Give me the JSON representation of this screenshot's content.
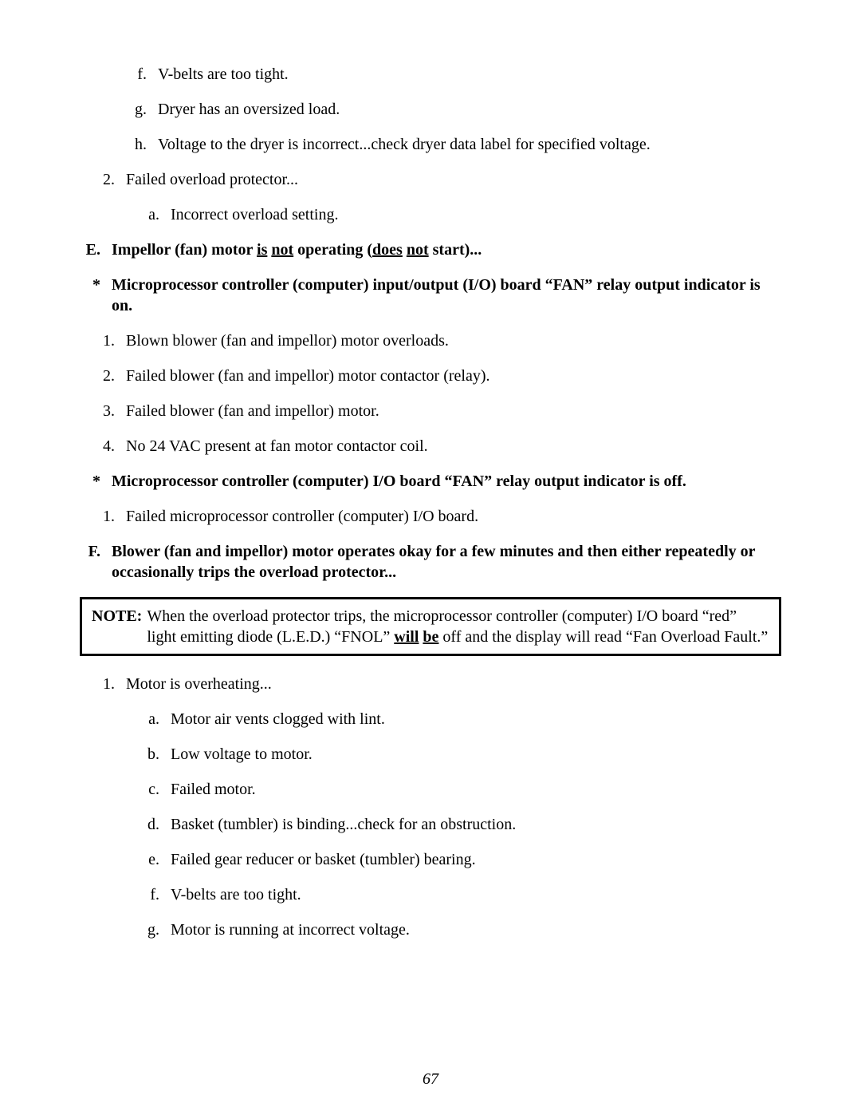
{
  "colors": {
    "text": "#000000",
    "background": "#ffffff",
    "note_border": "#000000"
  },
  "typography": {
    "family": "Times New Roman",
    "base_size_pt": 15,
    "line_height": 1.3
  },
  "page_number": "67",
  "top_sublist": [
    {
      "marker": "f.",
      "text": "V-belts are too tight."
    },
    {
      "marker": "g.",
      "text": "Dryer has an oversized load."
    },
    {
      "marker": "h.",
      "text": "Voltage to the dryer is incorrect...check dryer data label for specified voltage."
    }
  ],
  "top_num": {
    "marker": "2.",
    "text": "Failed overload protector...",
    "sub": [
      {
        "marker": "a.",
        "text": "Incorrect overload setting."
      }
    ]
  },
  "sectionE": {
    "marker": "E.",
    "title_parts": {
      "pre": "Impellor (fan) motor ",
      "u1": "is",
      "mid1": " ",
      "u2": "not",
      "mid2": " operating (",
      "u3": "does",
      "mid3": " ",
      "u4": "not",
      "post": " start)..."
    }
  },
  "starE_on": {
    "marker": "*",
    "text": "Microprocessor controller (computer) input/output (I/O) board “FAN” relay output indicator is on."
  },
  "listE_on": [
    {
      "marker": "1.",
      "text": "Blown blower (fan and impellor) motor overloads."
    },
    {
      "marker": "2.",
      "text": "Failed blower (fan and impellor) motor contactor (relay)."
    },
    {
      "marker": "3.",
      "text": "Failed blower (fan and impellor) motor."
    },
    {
      "marker": "4.",
      "text": "No 24 VAC present at fan motor contactor coil."
    }
  ],
  "starE_off": {
    "marker": "*",
    "text": "Microprocessor controller (computer) I/O board “FAN” relay output indicator is off."
  },
  "listE_off": [
    {
      "marker": "1.",
      "text": "Failed microprocessor controller (computer) I/O board."
    }
  ],
  "sectionF": {
    "marker": "F.",
    "text": "Blower (fan and impellor) motor operates okay for a few minutes and then either repeatedly or occasionally trips the overload protector..."
  },
  "note": {
    "label": "NOTE:",
    "pre": "When the overload protector trips, the microprocessor controller (computer) I/O board “red” light emitting diode (L.E.D.) “FNOL” ",
    "u1": "will",
    "mid": " ",
    "u2": "be",
    "post": "  off and the display will read “Fan Overload Fault.”"
  },
  "listF": {
    "marker": "1.",
    "text": "Motor is overheating...",
    "sub": [
      {
        "marker": "a.",
        "text": "Motor air vents clogged with lint."
      },
      {
        "marker": "b.",
        "text": "Low voltage to motor."
      },
      {
        "marker": "c.",
        "text": "Failed motor."
      },
      {
        "marker": "d.",
        "text": "Basket (tumbler) is binding...check for an obstruction."
      },
      {
        "marker": "e.",
        "text": "Failed gear reducer or basket (tumbler) bearing."
      },
      {
        "marker": "f.",
        "text": "V-belts are too tight."
      },
      {
        "marker": "g.",
        "text": "Motor is running at incorrect voltage."
      }
    ]
  }
}
